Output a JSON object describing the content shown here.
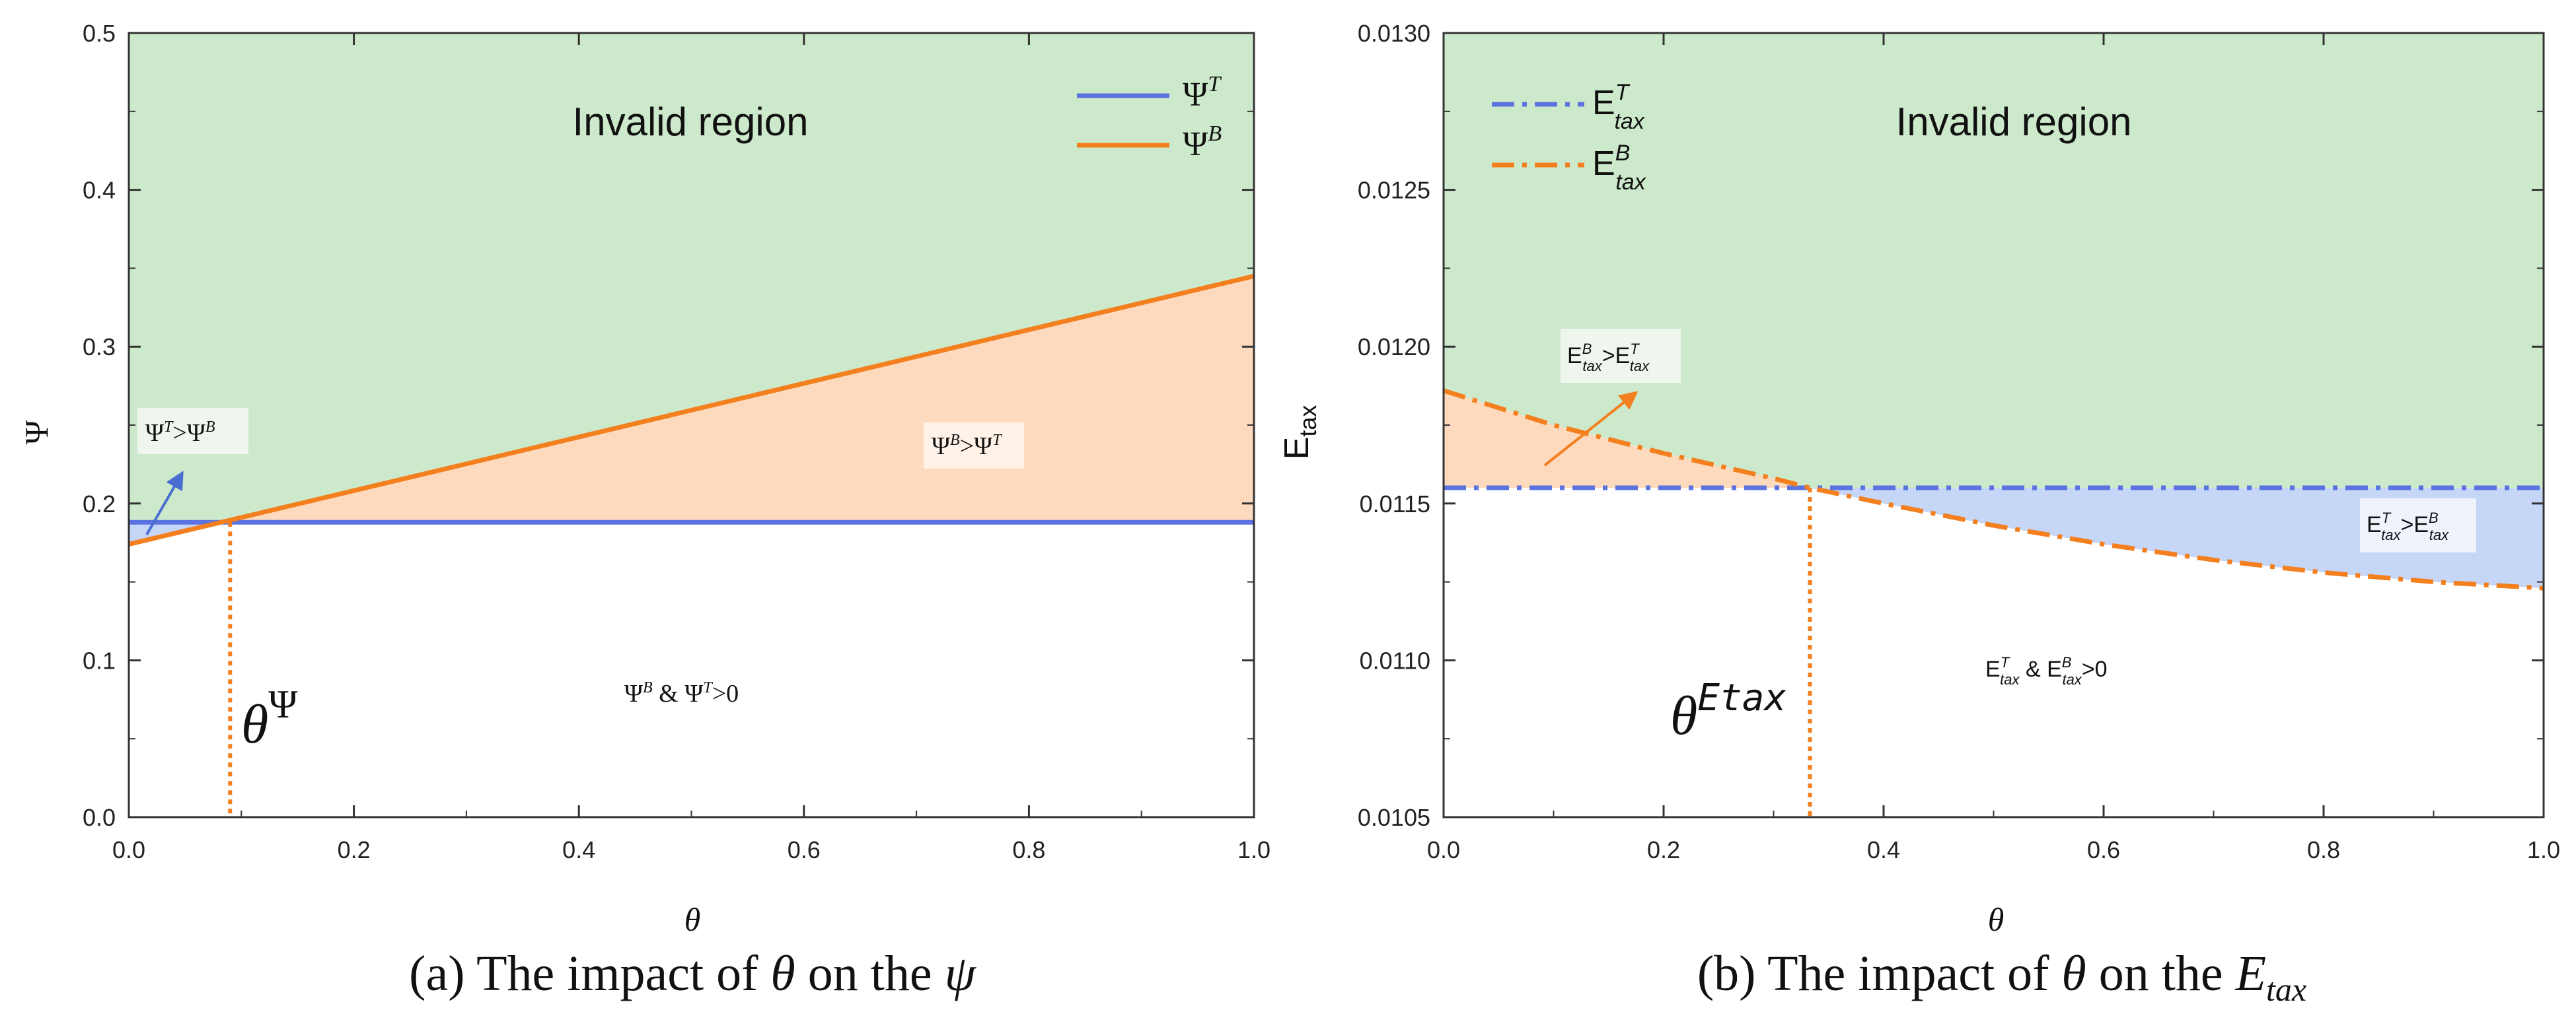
{
  "chart_data": [
    {
      "type": "line",
      "panel_caption": {
        "prefix": "(a) The impact of ",
        "theta": "θ",
        "mid": " on the ",
        "var": "ψ"
      },
      "xlabel": "θ",
      "ylabel": "Ψ",
      "xlim": [
        0.0,
        1.0
      ],
      "ylim": [
        0.0,
        0.5
      ],
      "x_ticks": [
        "0.0",
        "0.2",
        "0.4",
        "0.6",
        "0.8",
        "1.0"
      ],
      "y_ticks": [
        "0.0",
        "0.1",
        "0.2",
        "0.3",
        "0.4",
        "0.5"
      ],
      "colors": {
        "region_invalid": "#cde9cb",
        "region_orange": "#fdd9bd",
        "region_blue": "#c5d6f6",
        "series_T": "#5b73e0",
        "series_B": "#f47f1e"
      },
      "series": [
        {
          "name": "Ψ^T",
          "base": "Ψ",
          "sup": "T",
          "style": "solid",
          "x": [
            0.0,
            1.0
          ],
          "y": [
            0.188,
            0.188
          ]
        },
        {
          "name": "Ψ^B",
          "base": "Ψ",
          "sup": "B",
          "style": "solid",
          "x": [
            0.0,
            1.0
          ],
          "y": [
            0.174,
            0.345
          ]
        }
      ],
      "intersection": {
        "x": 0.09,
        "y": 0.188,
        "label_base": "θ",
        "label_sup": "Ψ"
      },
      "region_labels": {
        "invalid": "Invalid region",
        "b_gt_t": {
          "a": "Ψ",
          "a_sup": "B",
          "op": ">",
          "b": "Ψ",
          "b_sup": "T"
        },
        "t_gt_b": {
          "a": "Ψ",
          "a_sup": "T",
          "op": ">",
          "b": "Ψ",
          "b_sup": "B"
        },
        "both_positive": {
          "a": "Ψ",
          "a_sup": "B",
          "amp": " & ",
          "b": "Ψ",
          "b_sup": "T",
          "rest": ">0"
        }
      }
    },
    {
      "type": "line",
      "panel_caption": {
        "prefix": "(b) The impact of ",
        "theta": "θ",
        "mid": " on the ",
        "var": "E",
        "var_sub": "tax"
      },
      "xlabel": "θ",
      "ylabel": "E",
      "ylabel_sub": "tax",
      "xlim": [
        0.0,
        1.0
      ],
      "ylim": [
        0.0105,
        0.013
      ],
      "x_ticks": [
        "0.0",
        "0.2",
        "0.4",
        "0.6",
        "0.8",
        "1.0"
      ],
      "y_ticks": [
        "0.0105",
        "0.0110",
        "0.0115",
        "0.0120",
        "0.0125",
        "0.0130"
      ],
      "series": [
        {
          "name": "E_tax^T",
          "base": "E",
          "sub": "tax",
          "sup": "T",
          "style": "dashdot",
          "x": [
            0.0,
            1.0
          ],
          "y": [
            0.01155,
            0.01155
          ]
        },
        {
          "name": "E_tax^B",
          "base": "E",
          "sub": "tax",
          "sup": "B",
          "style": "dashdot",
          "x": [
            0.0,
            0.1,
            0.2,
            0.3,
            0.333,
            0.4,
            0.5,
            0.6,
            0.7,
            0.8,
            0.9,
            1.0
          ],
          "y": [
            0.01186,
            0.01175,
            0.01166,
            0.01158,
            0.01155,
            0.0115,
            0.01143,
            0.01137,
            0.01132,
            0.01128,
            0.01125,
            0.01123
          ]
        }
      ],
      "intersection": {
        "x": 0.333,
        "y": 0.01155,
        "label_base": "θ",
        "label_sup": "Etax"
      },
      "region_labels": {
        "invalid": "Invalid region",
        "b_gt_t": {
          "a": "E",
          "a_sub": "tax",
          "a_sup": "B",
          "op": ">",
          "b": "E",
          "b_sub": "tax",
          "b_sup": "T"
        },
        "t_gt_b": {
          "a": "E",
          "a_sub": "tax",
          "a_sup": "T",
          "op": ">",
          "b": "E",
          "b_sub": "tax",
          "b_sup": "B"
        },
        "both_positive": {
          "a": "E",
          "a_sub": "tax",
          "a_sup": "T",
          "amp": " & ",
          "b": "E",
          "b_sub": "tax",
          "b_sup": "B",
          "rest": ">0"
        }
      }
    }
  ]
}
